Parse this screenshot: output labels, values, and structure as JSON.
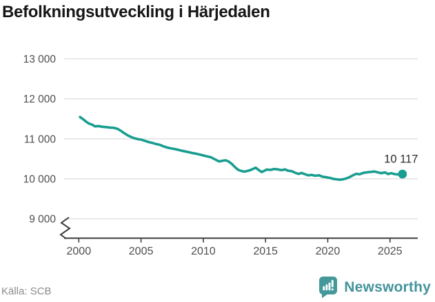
{
  "title": "Befolkningsutveckling i Härjedalen",
  "source": "Källa: SCB",
  "branding": {
    "name": "Newsworthy"
  },
  "colors": {
    "line": "#189d8f",
    "dot": "#189d8f",
    "grid": "#e2e2e2",
    "axis": "#3c3c3c",
    "tick_label": "#4d4d4d",
    "value_label": "#2b2b2b",
    "title": "#161616",
    "source": "#8a8a8a",
    "brand_icon": "#44989a",
    "brand_text": "#44949c"
  },
  "chart_data": {
    "type": "line",
    "title": "Befolkningsutveckling i Härjedalen",
    "xlabel": "",
    "ylabel": "",
    "x_domain": [
      2000,
      2026
    ],
    "ylim": [
      9000,
      13000
    ],
    "y_axis_break": true,
    "grid": "horizontal",
    "legend": "none",
    "end_label": "10 117",
    "latest_value": 10117,
    "yticks": [
      {
        "value": 13000,
        "label": "13 000"
      },
      {
        "value": 12000,
        "label": "12 000"
      },
      {
        "value": 11000,
        "label": "11 000"
      },
      {
        "value": 10000,
        "label": "10 000"
      },
      {
        "value": 9000,
        "label": "9 000"
      }
    ],
    "xticks": [
      {
        "value": 2000,
        "label": "2000"
      },
      {
        "value": 2005,
        "label": "2005"
      },
      {
        "value": 2010,
        "label": "2010"
      },
      {
        "value": 2015,
        "label": "2015"
      },
      {
        "value": 2020,
        "label": "2020"
      },
      {
        "value": 2025,
        "label": "2025"
      }
    ],
    "series": [
      {
        "name": "Härjedalen",
        "points": [
          [
            2000.1,
            11545
          ],
          [
            2000.35,
            11490
          ],
          [
            2000.6,
            11425
          ],
          [
            2000.8,
            11385
          ],
          [
            2001.05,
            11355
          ],
          [
            2001.3,
            11310
          ],
          [
            2001.6,
            11318
          ],
          [
            2001.9,
            11300
          ],
          [
            2002.2,
            11292
          ],
          [
            2002.5,
            11282
          ],
          [
            2002.8,
            11275
          ],
          [
            2003.1,
            11250
          ],
          [
            2003.35,
            11205
          ],
          [
            2003.6,
            11150
          ],
          [
            2003.85,
            11100
          ],
          [
            2004.1,
            11060
          ],
          [
            2004.4,
            11020
          ],
          [
            2004.75,
            10990
          ],
          [
            2005.0,
            10980
          ],
          [
            2005.3,
            10950
          ],
          [
            2005.6,
            10920
          ],
          [
            2005.9,
            10898
          ],
          [
            2006.2,
            10870
          ],
          [
            2006.5,
            10850
          ],
          [
            2006.8,
            10812
          ],
          [
            2007.1,
            10780
          ],
          [
            2007.4,
            10762
          ],
          [
            2007.7,
            10745
          ],
          [
            2008.0,
            10722
          ],
          [
            2008.3,
            10700
          ],
          [
            2008.6,
            10680
          ],
          [
            2008.9,
            10660
          ],
          [
            2009.2,
            10640
          ],
          [
            2009.5,
            10622
          ],
          [
            2009.8,
            10600
          ],
          [
            2010.05,
            10580
          ],
          [
            2010.3,
            10562
          ],
          [
            2010.6,
            10540
          ],
          [
            2010.8,
            10508
          ],
          [
            2011.05,
            10468
          ],
          [
            2011.3,
            10432
          ],
          [
            2011.55,
            10452
          ],
          [
            2011.8,
            10462
          ],
          [
            2012.05,
            10430
          ],
          [
            2012.3,
            10370
          ],
          [
            2012.55,
            10290
          ],
          [
            2012.8,
            10225
          ],
          [
            2013.05,
            10195
          ],
          [
            2013.3,
            10178
          ],
          [
            2013.55,
            10195
          ],
          [
            2013.8,
            10220
          ],
          [
            2014.05,
            10255
          ],
          [
            2014.2,
            10278
          ],
          [
            2014.45,
            10220
          ],
          [
            2014.7,
            10168
          ],
          [
            2014.9,
            10200
          ],
          [
            2015.1,
            10232
          ],
          [
            2015.4,
            10222
          ],
          [
            2015.7,
            10245
          ],
          [
            2016.0,
            10233
          ],
          [
            2016.3,
            10214
          ],
          [
            2016.55,
            10235
          ],
          [
            2016.8,
            10202
          ],
          [
            2017.1,
            10190
          ],
          [
            2017.4,
            10148
          ],
          [
            2017.65,
            10122
          ],
          [
            2017.9,
            10145
          ],
          [
            2018.2,
            10112
          ],
          [
            2018.45,
            10086
          ],
          [
            2018.7,
            10098
          ],
          [
            2019.0,
            10076
          ],
          [
            2019.3,
            10088
          ],
          [
            2019.6,
            10052
          ],
          [
            2019.9,
            10038
          ],
          [
            2020.2,
            10018
          ],
          [
            2020.5,
            9995
          ],
          [
            2020.8,
            9982
          ],
          [
            2021.05,
            9978
          ],
          [
            2021.3,
            9992
          ],
          [
            2021.55,
            10015
          ],
          [
            2021.8,
            10050
          ],
          [
            2022.05,
            10092
          ],
          [
            2022.3,
            10125
          ],
          [
            2022.55,
            10112
          ],
          [
            2022.85,
            10148
          ],
          [
            2023.15,
            10162
          ],
          [
            2023.45,
            10172
          ],
          [
            2023.75,
            10182
          ],
          [
            2024.0,
            10162
          ],
          [
            2024.3,
            10140
          ],
          [
            2024.6,
            10160
          ],
          [
            2024.85,
            10118
          ],
          [
            2025.1,
            10140
          ],
          [
            2025.35,
            10118
          ],
          [
            2025.6,
            10108
          ],
          [
            2025.8,
            10120
          ],
          [
            2026.0,
            10117
          ]
        ]
      }
    ]
  }
}
